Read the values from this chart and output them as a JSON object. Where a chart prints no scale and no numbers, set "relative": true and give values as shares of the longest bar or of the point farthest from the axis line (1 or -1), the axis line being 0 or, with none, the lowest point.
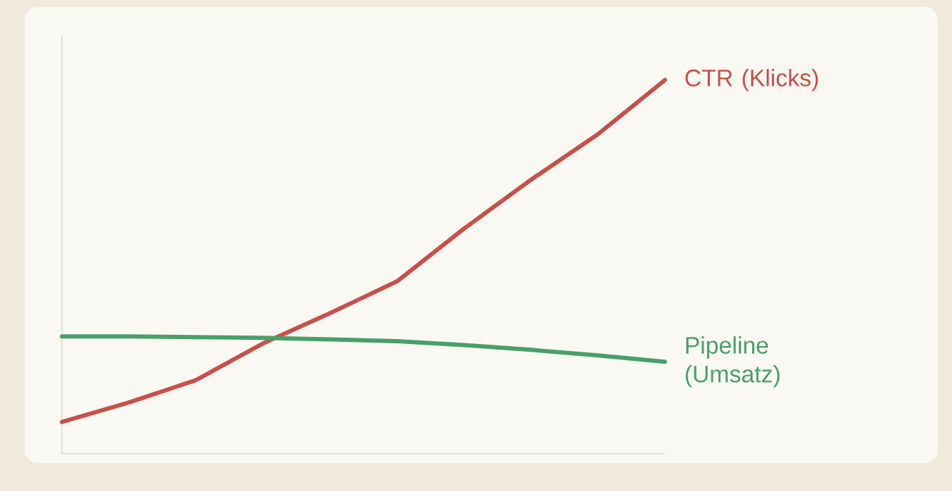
{
  "chart_data": {
    "type": "line",
    "relative": true,
    "categories": [
      null,
      null,
      null,
      null,
      null,
      null,
      null,
      null,
      null,
      null
    ],
    "series": [
      {
        "name": "CTR (Klicks)",
        "color": "#c8504a",
        "values": [
          0.085,
          0.137,
          0.197,
          0.295,
          0.376,
          0.461,
          0.602,
          0.733,
          0.855,
          1
        ]
      },
      {
        "name": "Pipeline (Umsatz)",
        "color": "#4a9e6a",
        "values": [
          0.314,
          0.314,
          0.312,
          0.31,
          0.306,
          0.301,
          0.291,
          0.278,
          0.263,
          0.246
        ]
      }
    ]
  }
}
